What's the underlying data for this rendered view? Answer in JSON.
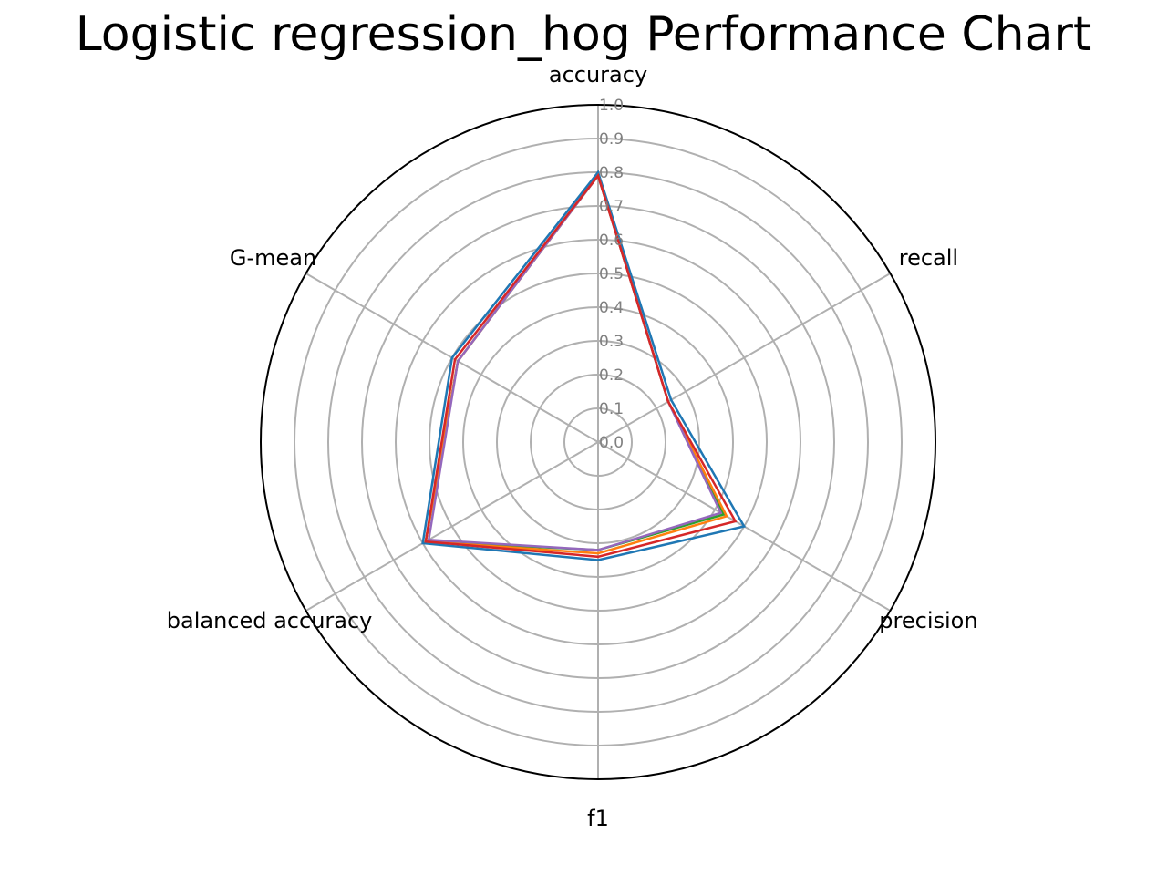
{
  "chart_data": {
    "type": "radar",
    "title": "Logistic regression_hog Performance Chart",
    "axes": [
      "accuracy",
      "recall",
      "precision",
      "f1",
      "balanced accuracy",
      "G-mean"
    ],
    "rlim": [
      0,
      1
    ],
    "r_ticks": [
      "0.0",
      "0.1",
      "0.2",
      "0.3",
      "0.4",
      "0.5",
      "0.6",
      "0.7",
      "0.8",
      "0.9",
      "1.0"
    ],
    "grid": true,
    "series": [
      {
        "color": "#1f77b4",
        "values": [
          0.8,
          0.25,
          0.5,
          0.35,
          0.6,
          0.5
        ]
      },
      {
        "color": "#2ca02c",
        "values": [
          0.79,
          0.24,
          0.43,
          0.32,
          0.59,
          0.48
        ]
      },
      {
        "color": "#ff7f0e",
        "values": [
          0.79,
          0.24,
          0.44,
          0.33,
          0.59,
          0.48
        ]
      },
      {
        "color": "#9467bd",
        "values": [
          0.79,
          0.24,
          0.42,
          0.32,
          0.58,
          0.48
        ]
      },
      {
        "color": "#d62728",
        "values": [
          0.79,
          0.24,
          0.47,
          0.34,
          0.59,
          0.49
        ]
      }
    ]
  }
}
